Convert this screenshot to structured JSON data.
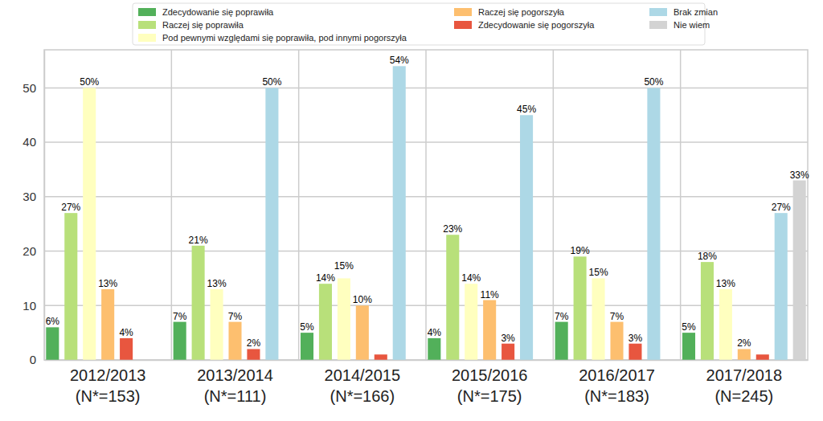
{
  "chart_data": {
    "type": "bar",
    "categories": [
      "2012/2013\n(N*=153)",
      "2013/2014\n(N*=111)",
      "2014/2015\n(N*=166)",
      "2015/2016\n(N*=175)",
      "2016/2017\n(N*=183)",
      "2017/2018\n(N=245)"
    ],
    "series": [
      {
        "name": "Zdecydowanie się poprawiła",
        "color": "#52b05a",
        "values": [
          6,
          7,
          5,
          4,
          7,
          5
        ],
        "value_labels": [
          "6%",
          "7%",
          "5%",
          "4%",
          "7%",
          "5%"
        ]
      },
      {
        "name": "Raczej się poprawiła",
        "color": "#b8e07a",
        "values": [
          27,
          21,
          14,
          23,
          19,
          18
        ],
        "value_labels": [
          "27%",
          "21%",
          "14%",
          "23%",
          "19%",
          "18%"
        ]
      },
      {
        "name": "Pod pewnymi względami się poprawiła, pod innymi pogorszyła",
        "color": "#ffffbf",
        "values": [
          50,
          13,
          15,
          14,
          15,
          13
        ],
        "value_labels": [
          "50%",
          "13%",
          "15%",
          "14%",
          "15%",
          "13%"
        ]
      },
      {
        "name": "Raczej się pogorszyła",
        "color": "#fdbf6f",
        "values": [
          13,
          7,
          10,
          11,
          7,
          2
        ],
        "value_labels": [
          "13%",
          "7%",
          "10%",
          "11%",
          "7%",
          "2%"
        ]
      },
      {
        "name": "Zdecydowanie się pogorszyła",
        "color": "#e8563f",
        "values": [
          4,
          2,
          1,
          3,
          3,
          1
        ],
        "value_labels": [
          "4%",
          "2%",
          null,
          "3%",
          "3%",
          null
        ]
      },
      {
        "name": "Brak zmian",
        "color": "#add8e6",
        "values": [
          null,
          50,
          54,
          45,
          50,
          27
        ],
        "value_labels": [
          null,
          "50%",
          "54%",
          "45%",
          "50%",
          "27%"
        ]
      },
      {
        "name": "Nie wiem",
        "color": "#d3d3d3",
        "values": [
          null,
          null,
          null,
          null,
          null,
          33
        ],
        "value_labels": [
          null,
          null,
          null,
          null,
          null,
          "33%"
        ]
      }
    ],
    "ylim": [
      0,
      57
    ],
    "yticks": [
      0,
      10,
      20,
      30,
      40,
      50
    ],
    "grid": true,
    "legend": "top",
    "data_labels": true
  }
}
